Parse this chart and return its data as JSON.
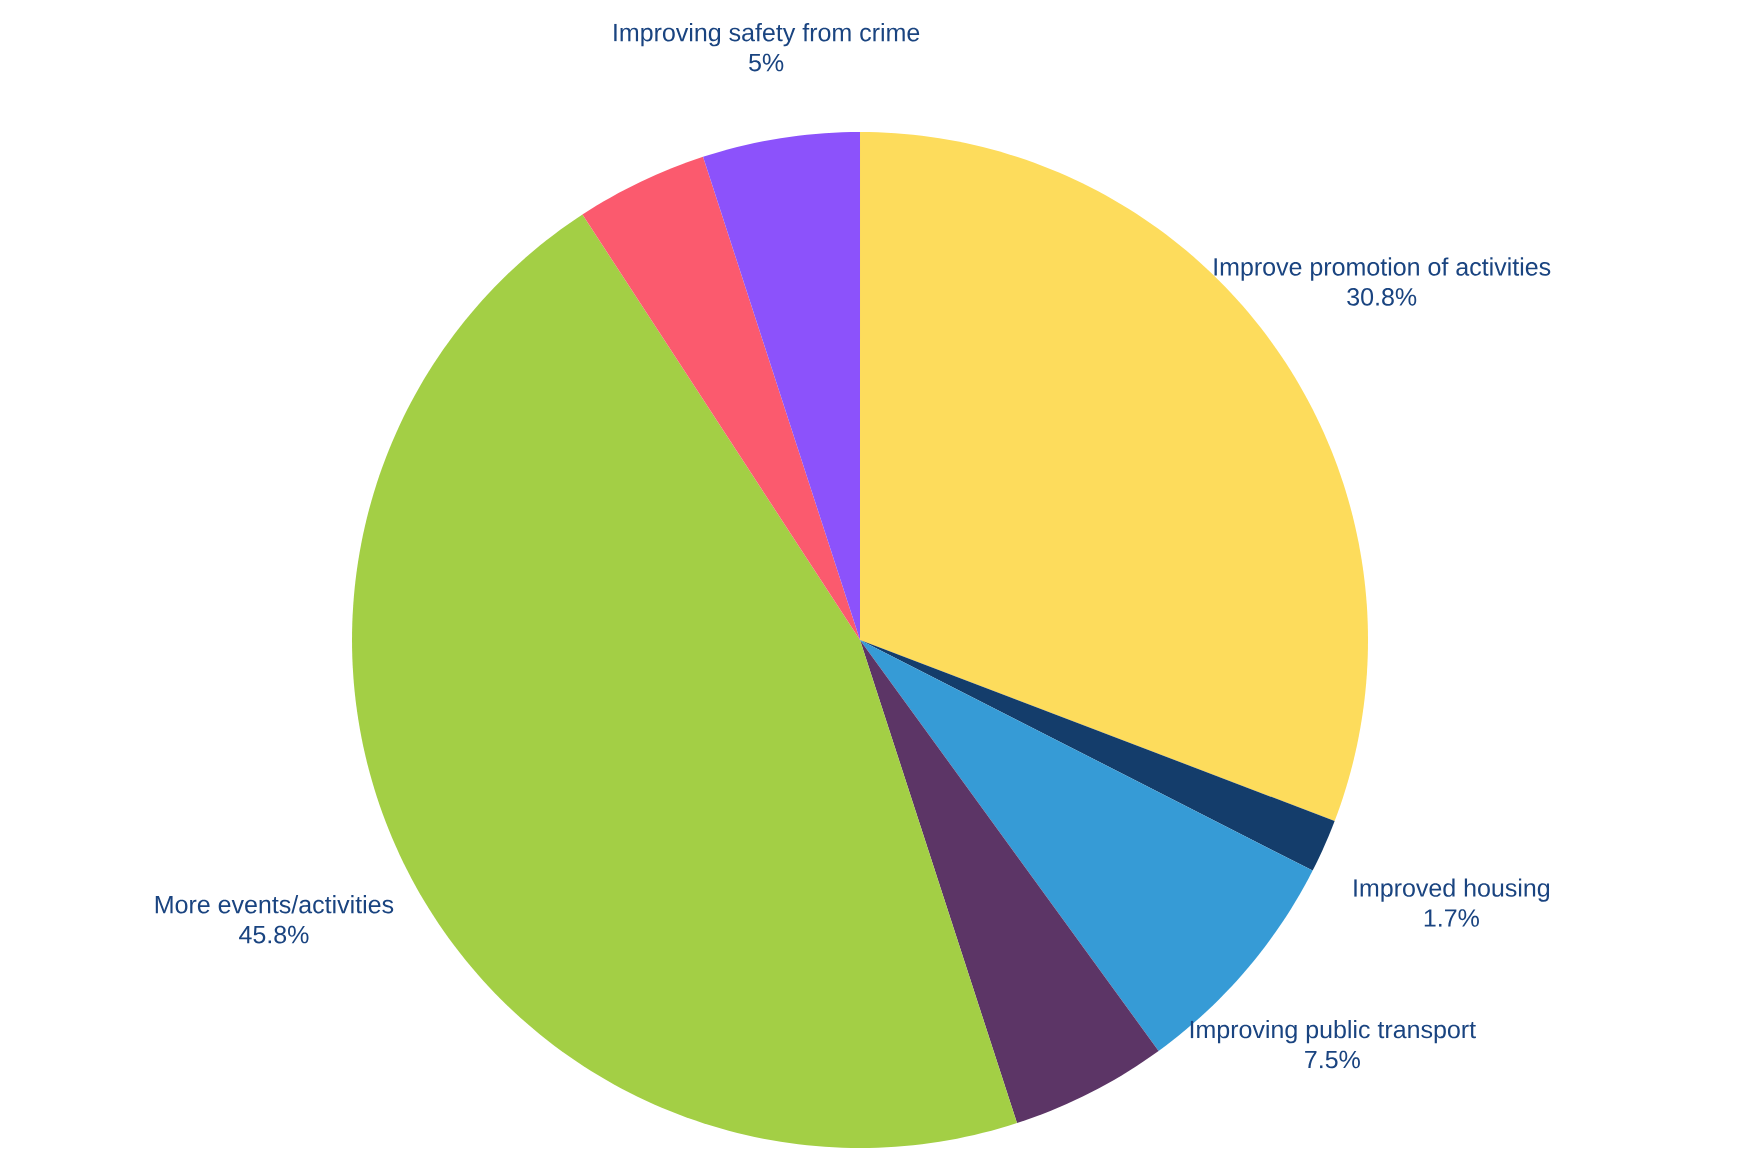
{
  "chart_data": {
    "type": "pie",
    "categories": [
      "Improve promotion of activities",
      "Improved housing",
      "Improving public transport",
      null,
      "More events/activities",
      null,
      "Improving safety from crime"
    ],
    "values": [
      30.8,
      1.7,
      7.5,
      5,
      45.8,
      4.2,
      5
    ],
    "value_labels": [
      "30.8%",
      "1.7%",
      "7.5%",
      null,
      "45.8%",
      null,
      "5%"
    ],
    "colors": [
      "#fddc5c",
      "#143d6b",
      "#369bd6",
      "#5c3566",
      "#a3cf45",
      "#fb5a6e",
      "#8c52fb"
    ],
    "legend": false
  }
}
